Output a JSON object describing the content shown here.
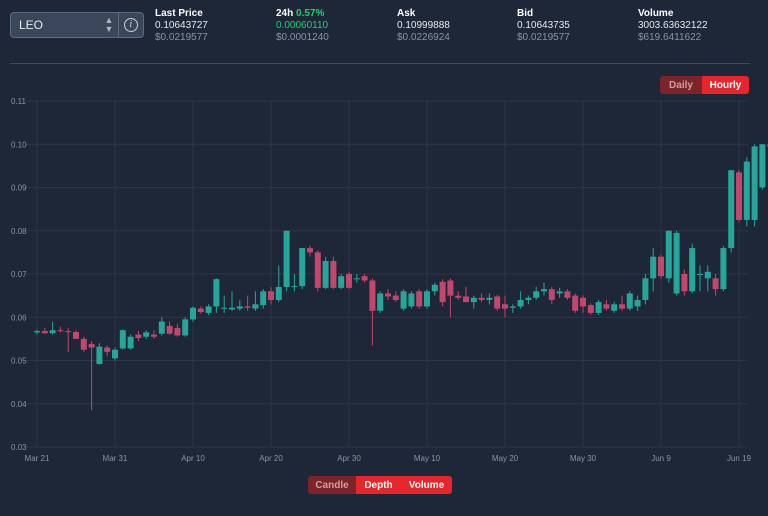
{
  "pair": {
    "name": "LEO"
  },
  "stats": {
    "last_price": {
      "label": "Last Price",
      "value": "0.10643727",
      "sub": "$0.0219577"
    },
    "change_24h": {
      "label": "24h",
      "percent": "0.57%",
      "value": "0.00060110",
      "sub": "$0.0001240"
    },
    "ask": {
      "label": "Ask",
      "value": "0.10999888",
      "sub": "$0.0226924"
    },
    "bid": {
      "label": "Bid",
      "value": "0.10643735",
      "sub": "$0.0219577"
    },
    "volume": {
      "label": "Volume",
      "value": "3003.63632122",
      "sub": "$619.6411622"
    }
  },
  "interval_toggle": {
    "daily": "Daily",
    "hourly": "Hourly",
    "selected": "Hourly"
  },
  "view_toggle": {
    "candle": "Candle",
    "depth": "Depth",
    "volume": "Volume",
    "inactive": "Candle"
  },
  "colors": {
    "up": "#26a69a",
    "down": "#c2476a",
    "accent": "#e5262d",
    "background": "#1e2738"
  },
  "chart_data": {
    "type": "candlestick",
    "x_tick_labels": [
      "Mar 21",
      "Mar 31",
      "Apr 10",
      "Apr 20",
      "Apr 30",
      "May 10",
      "May 20",
      "May 30",
      "Jun 9",
      "Jun 19"
    ],
    "x_tick_days": [
      0,
      10,
      20,
      30,
      40,
      50,
      60,
      70,
      80,
      90
    ],
    "ylim": [
      0.03,
      0.11
    ],
    "y_ticks": [
      "0.03",
      "0.04",
      "0.05",
      "0.06",
      "0.07",
      "0.08",
      "0.09",
      "0.10",
      "0.11"
    ],
    "grid": true,
    "candles": [
      {
        "day": 0,
        "o": 0.0565,
        "h": 0.0572,
        "l": 0.056,
        "c": 0.0568
      },
      {
        "day": 1,
        "o": 0.0568,
        "h": 0.0575,
        "l": 0.0562,
        "c": 0.0563
      },
      {
        "day": 2,
        "o": 0.0563,
        "h": 0.059,
        "l": 0.056,
        "c": 0.057
      },
      {
        "day": 3,
        "o": 0.057,
        "h": 0.0578,
        "l": 0.0565,
        "c": 0.0568
      },
      {
        "day": 4,
        "o": 0.0568,
        "h": 0.0575,
        "l": 0.052,
        "c": 0.0566
      },
      {
        "day": 5,
        "o": 0.0566,
        "h": 0.057,
        "l": 0.055,
        "c": 0.055
      },
      {
        "day": 6,
        "o": 0.055,
        "h": 0.0555,
        "l": 0.052,
        "c": 0.0525
      },
      {
        "day": 7,
        "o": 0.0538,
        "h": 0.0545,
        "l": 0.0385,
        "c": 0.053
      },
      {
        "day": 8,
        "o": 0.0492,
        "h": 0.054,
        "l": 0.049,
        "c": 0.0532
      },
      {
        "day": 9,
        "o": 0.053,
        "h": 0.0535,
        "l": 0.051,
        "c": 0.052
      },
      {
        "day": 10,
        "o": 0.0505,
        "h": 0.053,
        "l": 0.05,
        "c": 0.0525
      },
      {
        "day": 11,
        "o": 0.0528,
        "h": 0.0572,
        "l": 0.0525,
        "c": 0.057
      },
      {
        "day": 12,
        "o": 0.0528,
        "h": 0.056,
        "l": 0.0525,
        "c": 0.0555
      },
      {
        "day": 13,
        "o": 0.056,
        "h": 0.0568,
        "l": 0.0545,
        "c": 0.0552
      },
      {
        "day": 14,
        "o": 0.0555,
        "h": 0.057,
        "l": 0.055,
        "c": 0.0565
      },
      {
        "day": 15,
        "o": 0.056,
        "h": 0.057,
        "l": 0.055,
        "c": 0.0555
      },
      {
        "day": 16,
        "o": 0.0562,
        "h": 0.06,
        "l": 0.0558,
        "c": 0.059
      },
      {
        "day": 17,
        "o": 0.058,
        "h": 0.059,
        "l": 0.056,
        "c": 0.0562
      },
      {
        "day": 18,
        "o": 0.0575,
        "h": 0.0585,
        "l": 0.0555,
        "c": 0.0558
      },
      {
        "day": 19,
        "o": 0.0558,
        "h": 0.06,
        "l": 0.0555,
        "c": 0.0595
      },
      {
        "day": 20,
        "o": 0.0595,
        "h": 0.0625,
        "l": 0.059,
        "c": 0.0622
      },
      {
        "day": 21,
        "o": 0.062,
        "h": 0.0625,
        "l": 0.0608,
        "c": 0.0612
      },
      {
        "day": 22,
        "o": 0.061,
        "h": 0.063,
        "l": 0.0605,
        "c": 0.0625
      },
      {
        "day": 23,
        "o": 0.0625,
        "h": 0.069,
        "l": 0.061,
        "c": 0.0688
      },
      {
        "day": 24,
        "o": 0.062,
        "h": 0.065,
        "l": 0.061,
        "c": 0.0622
      },
      {
        "day": 25,
        "o": 0.0618,
        "h": 0.066,
        "l": 0.0615,
        "c": 0.0622
      },
      {
        "day": 26,
        "o": 0.062,
        "h": 0.064,
        "l": 0.0615,
        "c": 0.0625
      },
      {
        "day": 27,
        "o": 0.0625,
        "h": 0.065,
        "l": 0.0615,
        "c": 0.0622
      },
      {
        "day": 28,
        "o": 0.062,
        "h": 0.066,
        "l": 0.0615,
        "c": 0.063
      },
      {
        "day": 29,
        "o": 0.0628,
        "h": 0.0665,
        "l": 0.062,
        "c": 0.066
      },
      {
        "day": 30,
        "o": 0.066,
        "h": 0.067,
        "l": 0.063,
        "c": 0.064
      },
      {
        "day": 31,
        "o": 0.064,
        "h": 0.072,
        "l": 0.0635,
        "c": 0.067
      },
      {
        "day": 32,
        "o": 0.067,
        "h": 0.08,
        "l": 0.066,
        "c": 0.08
      },
      {
        "day": 33,
        "o": 0.067,
        "h": 0.07,
        "l": 0.066,
        "c": 0.0672
      },
      {
        "day": 34,
        "o": 0.0672,
        "h": 0.076,
        "l": 0.0665,
        "c": 0.076
      },
      {
        "day": 35,
        "o": 0.076,
        "h": 0.0765,
        "l": 0.074,
        "c": 0.075
      },
      {
        "day": 36,
        "o": 0.075,
        "h": 0.0755,
        "l": 0.066,
        "c": 0.0668
      },
      {
        "day": 37,
        "o": 0.0668,
        "h": 0.074,
        "l": 0.0665,
        "c": 0.073
      },
      {
        "day": 38,
        "o": 0.073,
        "h": 0.074,
        "l": 0.0665,
        "c": 0.0668
      },
      {
        "day": 39,
        "o": 0.0668,
        "h": 0.07,
        "l": 0.0665,
        "c": 0.0695
      },
      {
        "day": 40,
        "o": 0.07,
        "h": 0.0705,
        "l": 0.0665,
        "c": 0.0668
      },
      {
        "day": 41,
        "o": 0.069,
        "h": 0.07,
        "l": 0.068,
        "c": 0.069
      },
      {
        "day": 42,
        "o": 0.0695,
        "h": 0.07,
        "l": 0.068,
        "c": 0.0685
      },
      {
        "day": 43,
        "o": 0.0685,
        "h": 0.069,
        "l": 0.0535,
        "c": 0.0615
      },
      {
        "day": 44,
        "o": 0.0615,
        "h": 0.066,
        "l": 0.061,
        "c": 0.0655
      },
      {
        "day": 45,
        "o": 0.0655,
        "h": 0.0665,
        "l": 0.064,
        "c": 0.0648
      },
      {
        "day": 46,
        "o": 0.065,
        "h": 0.066,
        "l": 0.0635,
        "c": 0.064
      },
      {
        "day": 47,
        "o": 0.062,
        "h": 0.0665,
        "l": 0.0615,
        "c": 0.066
      },
      {
        "day": 48,
        "o": 0.0625,
        "h": 0.066,
        "l": 0.062,
        "c": 0.0655
      },
      {
        "day": 49,
        "o": 0.066,
        "h": 0.0665,
        "l": 0.062,
        "c": 0.0625
      },
      {
        "day": 50,
        "o": 0.0625,
        "h": 0.0665,
        "l": 0.062,
        "c": 0.066
      },
      {
        "day": 51,
        "o": 0.066,
        "h": 0.068,
        "l": 0.065,
        "c": 0.0675
      },
      {
        "day": 52,
        "o": 0.0682,
        "h": 0.0688,
        "l": 0.0625,
        "c": 0.0635
      },
      {
        "day": 53,
        "o": 0.0685,
        "h": 0.069,
        "l": 0.06,
        "c": 0.065
      },
      {
        "day": 54,
        "o": 0.065,
        "h": 0.066,
        "l": 0.064,
        "c": 0.0645
      },
      {
        "day": 55,
        "o": 0.0648,
        "h": 0.067,
        "l": 0.064,
        "c": 0.0635
      },
      {
        "day": 56,
        "o": 0.0635,
        "h": 0.065,
        "l": 0.062,
        "c": 0.0645
      },
      {
        "day": 57,
        "o": 0.0645,
        "h": 0.0655,
        "l": 0.0635,
        "c": 0.064
      },
      {
        "day": 58,
        "o": 0.064,
        "h": 0.0655,
        "l": 0.063,
        "c": 0.0645
      },
      {
        "day": 59,
        "o": 0.0648,
        "h": 0.0652,
        "l": 0.0615,
        "c": 0.062
      },
      {
        "day": 60,
        "o": 0.063,
        "h": 0.065,
        "l": 0.06,
        "c": 0.062
      },
      {
        "day": 61,
        "o": 0.0622,
        "h": 0.063,
        "l": 0.061,
        "c": 0.0625
      },
      {
        "day": 62,
        "o": 0.0625,
        "h": 0.066,
        "l": 0.062,
        "c": 0.064
      },
      {
        "day": 63,
        "o": 0.064,
        "h": 0.065,
        "l": 0.063,
        "c": 0.0645
      },
      {
        "day": 64,
        "o": 0.0645,
        "h": 0.067,
        "l": 0.064,
        "c": 0.066
      },
      {
        "day": 65,
        "o": 0.066,
        "h": 0.068,
        "l": 0.065,
        "c": 0.0665
      },
      {
        "day": 66,
        "o": 0.0665,
        "h": 0.067,
        "l": 0.063,
        "c": 0.064
      },
      {
        "day": 67,
        "o": 0.0655,
        "h": 0.0668,
        "l": 0.0645,
        "c": 0.066
      },
      {
        "day": 68,
        "o": 0.066,
        "h": 0.0665,
        "l": 0.064,
        "c": 0.0645
      },
      {
        "day": 69,
        "o": 0.065,
        "h": 0.0655,
        "l": 0.061,
        "c": 0.0615
      },
      {
        "day": 70,
        "o": 0.0645,
        "h": 0.065,
        "l": 0.061,
        "c": 0.0625
      },
      {
        "day": 71,
        "o": 0.0628,
        "h": 0.0632,
        "l": 0.0605,
        "c": 0.061
      },
      {
        "day": 72,
        "o": 0.061,
        "h": 0.064,
        "l": 0.0605,
        "c": 0.0635
      },
      {
        "day": 73,
        "o": 0.063,
        "h": 0.064,
        "l": 0.0615,
        "c": 0.062
      },
      {
        "day": 74,
        "o": 0.0615,
        "h": 0.0635,
        "l": 0.061,
        "c": 0.063
      },
      {
        "day": 75,
        "o": 0.063,
        "h": 0.065,
        "l": 0.0615,
        "c": 0.062
      },
      {
        "day": 76,
        "o": 0.062,
        "h": 0.066,
        "l": 0.0615,
        "c": 0.0655
      },
      {
        "day": 77,
        "o": 0.0625,
        "h": 0.065,
        "l": 0.0615,
        "c": 0.064
      },
      {
        "day": 78,
        "o": 0.064,
        "h": 0.07,
        "l": 0.063,
        "c": 0.069
      },
      {
        "day": 79,
        "o": 0.069,
        "h": 0.076,
        "l": 0.066,
        "c": 0.074
      },
      {
        "day": 80,
        "o": 0.074,
        "h": 0.0745,
        "l": 0.069,
        "c": 0.0695
      },
      {
        "day": 81,
        "o": 0.069,
        "h": 0.08,
        "l": 0.068,
        "c": 0.08
      },
      {
        "day": 82,
        "o": 0.0655,
        "h": 0.08,
        "l": 0.065,
        "c": 0.0795
      },
      {
        "day": 83,
        "o": 0.07,
        "h": 0.071,
        "l": 0.065,
        "c": 0.066
      },
      {
        "day": 84,
        "o": 0.066,
        "h": 0.077,
        "l": 0.0655,
        "c": 0.076
      },
      {
        "day": 85,
        "o": 0.07,
        "h": 0.072,
        "l": 0.066,
        "c": 0.07
      },
      {
        "day": 86,
        "o": 0.069,
        "h": 0.072,
        "l": 0.066,
        "c": 0.0705
      },
      {
        "day": 87,
        "o": 0.069,
        "h": 0.07,
        "l": 0.065,
        "c": 0.0665
      },
      {
        "day": 88,
        "o": 0.0665,
        "h": 0.0765,
        "l": 0.066,
        "c": 0.076
      },
      {
        "day": 89,
        "o": 0.076,
        "h": 0.094,
        "l": 0.075,
        "c": 0.094
      },
      {
        "day": 90,
        "o": 0.0935,
        "h": 0.094,
        "l": 0.082,
        "c": 0.0825
      },
      {
        "day": 91,
        "o": 0.0825,
        "h": 0.097,
        "l": 0.081,
        "c": 0.096
      },
      {
        "day": 92,
        "o": 0.0825,
        "h": 0.1,
        "l": 0.081,
        "c": 0.0995
      },
      {
        "day": 93,
        "o": 0.09,
        "h": 0.1,
        "l": 0.0895,
        "c": 0.1
      },
      {
        "day": 94,
        "o": 0.1,
        "h": 0.105,
        "l": 0.097,
        "c": 0.0995
      },
      {
        "day": 95,
        "o": 0.1,
        "h": 0.1075,
        "l": 0.0985,
        "c": 0.099
      },
      {
        "day": 96,
        "o": 0.0995,
        "h": 0.1065,
        "l": 0.0985,
        "c": 0.1065
      }
    ]
  }
}
